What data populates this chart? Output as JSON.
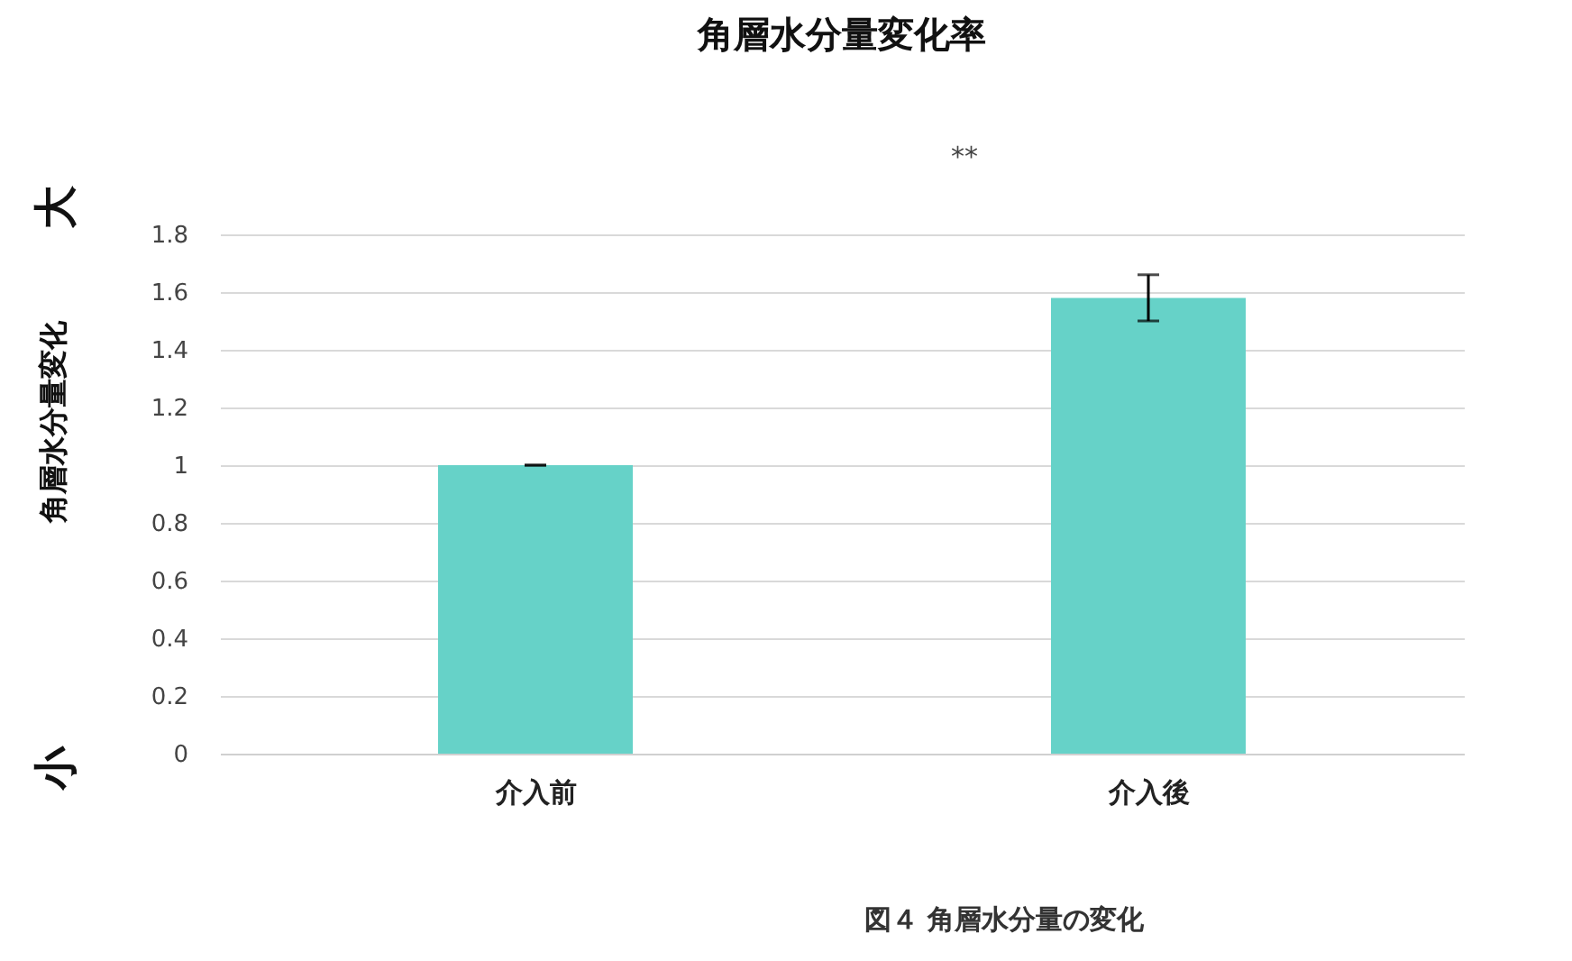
{
  "chart_data": {
    "type": "bar",
    "title": "角層水分量変化率",
    "ylabel": "角層水分量変化",
    "categories": [
      "介入前",
      "介入後"
    ],
    "values": [
      1.0,
      1.58
    ],
    "errors": [
      0,
      0.08
    ],
    "color": "#66d2c8",
    "ylim": [
      0,
      1.8
    ],
    "yticks": [
      0,
      0.2,
      0.4,
      0.6,
      0.8,
      1,
      1.2,
      1.4,
      1.6,
      1.8
    ],
    "grid": "y",
    "annotations": [
      "**",
      "大",
      "小",
      "図４  角層水分量の変化"
    ]
  }
}
